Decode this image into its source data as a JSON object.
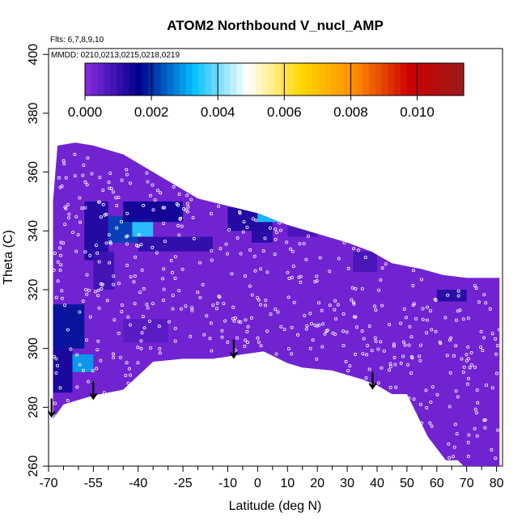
{
  "chart_data": {
    "type": "heatmap",
    "title": "ATOM2 Northbound V_nucl_AMP",
    "notes": [
      "Flts: 6,7,8,9,10",
      "MMDD: 0210,0213,0215,0218,0219"
    ],
    "xlabel": "Latitude (deg N)",
    "ylabel": "Theta (C)",
    "xlim": [
      -70,
      82
    ],
    "ylim": [
      260,
      402
    ],
    "x_ticks": [
      -70,
      -55,
      -40,
      -25,
      -10,
      0,
      10,
      20,
      30,
      40,
      50,
      60,
      70,
      80
    ],
    "x_tick_labels": [
      "-70",
      "-55",
      "-40",
      "-25",
      "-10",
      "0",
      "10",
      "20",
      "30",
      "40",
      "50",
      "60",
      "70",
      "80"
    ],
    "x_minor_ticks": [
      -65,
      -60,
      -50,
      -45,
      -35,
      -30,
      -20,
      -15,
      -5,
      5,
      15,
      25,
      35,
      45,
      55,
      65,
      75
    ],
    "y_ticks": [
      260,
      280,
      300,
      320,
      340,
      360,
      380,
      400
    ],
    "y_tick_labels": [
      "260",
      "280",
      "300",
      "320",
      "340",
      "360",
      "380",
      "400"
    ],
    "colorbar": {
      "min": 0.0,
      "max": 0.0114,
      "ticks": [
        0.0,
        0.002,
        0.004,
        0.006,
        0.008,
        0.01
      ],
      "tick_labels": [
        "0.000",
        "0.002",
        "0.004",
        "0.006",
        "0.008",
        "0.010"
      ],
      "colors": [
        "#8a2be2",
        "#00008b",
        "#00bfff",
        "#ffffff",
        "#ffd700",
        "#ff8c00",
        "#cc0000",
        "#9b1c1c"
      ]
    },
    "background_value": 0.0003,
    "field_boundary": [
      [
        -68.5,
        276
      ],
      [
        -65,
        281
      ],
      [
        -55,
        284
      ],
      [
        -45,
        286
      ],
      [
        -35,
        295.5
      ],
      [
        -25,
        296.5
      ],
      [
        -15,
        296.5
      ],
      [
        -5,
        298
      ],
      [
        2,
        299
      ],
      [
        10,
        295
      ],
      [
        15,
        293.5
      ],
      [
        25,
        292.5
      ],
      [
        35,
        289.5
      ],
      [
        40,
        287.5
      ],
      [
        45,
        284.5
      ],
      [
        50,
        284.5
      ],
      [
        57,
        270
      ],
      [
        63,
        262
      ],
      [
        67,
        262
      ],
      [
        69,
        260
      ],
      [
        81,
        260
      ],
      [
        81,
        324
      ],
      [
        70,
        324
      ],
      [
        62,
        325
      ],
      [
        55,
        327
      ],
      [
        45,
        329
      ],
      [
        38,
        333
      ],
      [
        30,
        336
      ],
      [
        20,
        339
      ],
      [
        10,
        342
      ],
      [
        0,
        346
      ],
      [
        -8,
        348
      ],
      [
        -20,
        351
      ],
      [
        -30,
        357
      ],
      [
        -45,
        366
      ],
      [
        -55,
        369
      ],
      [
        -61,
        370
      ],
      [
        -67,
        369
      ],
      [
        -68.5,
        350
      ]
    ],
    "enhanced_regions": [
      {
        "lat_range": [
          -68.5,
          -58
        ],
        "theta_range": [
          300,
          315
        ],
        "value": 0.0018
      },
      {
        "lat_range": [
          -68.5,
          -62
        ],
        "theta_range": [
          285,
          300
        ],
        "value": 0.0014
      },
      {
        "lat_range": [
          -62,
          -55
        ],
        "theta_range": [
          292,
          298
        ],
        "value": 0.003
      },
      {
        "lat_range": [
          -58,
          -50
        ],
        "theta_range": [
          330,
          350
        ],
        "value": 0.0013
      },
      {
        "lat_range": [
          -50,
          -40
        ],
        "theta_range": [
          336,
          345
        ],
        "value": 0.0022
      },
      {
        "lat_range": [
          -42,
          -35
        ],
        "theta_range": [
          338,
          344
        ],
        "value": 0.0035
      },
      {
        "lat_range": [
          -45,
          -25
        ],
        "theta_range": [
          343,
          350
        ],
        "value": 0.0015
      },
      {
        "lat_range": [
          -40,
          -15
        ],
        "theta_range": [
          333,
          338
        ],
        "value": 0.0011
      },
      {
        "lat_range": [
          -55,
          -48
        ],
        "theta_range": [
          320,
          333
        ],
        "value": 0.0009
      },
      {
        "lat_range": [
          -10,
          5
        ],
        "theta_range": [
          340,
          348
        ],
        "value": 0.0013
      },
      {
        "lat_range": [
          -2,
          5
        ],
        "theta_range": [
          336,
          342
        ],
        "value": 0.0012
      },
      {
        "lat_range": [
          0,
          10
        ],
        "theta_range": [
          343,
          346
        ],
        "value": 0.0034
      },
      {
        "lat_range": [
          -45,
          -30
        ],
        "theta_range": [
          302,
          310
        ],
        "value": 0.0006
      },
      {
        "lat_range": [
          10,
          20
        ],
        "theta_range": [
          338,
          342
        ],
        "value": 0.0008
      },
      {
        "lat_range": [
          32,
          40
        ],
        "theta_range": [
          326,
          333
        ],
        "value": 0.0008
      },
      {
        "lat_range": [
          60,
          70
        ],
        "theta_range": [
          316,
          320
        ],
        "value": 0.0012
      }
    ],
    "arrows": [
      {
        "lat": -69,
        "theta_from": 283,
        "theta_to": 277
      },
      {
        "lat": -55,
        "theta_from": 289,
        "theta_to": 283
      },
      {
        "lat": -8,
        "theta_from": 303,
        "theta_to": 297
      },
      {
        "lat": 38.5,
        "theta_from": 292,
        "theta_to": 286.5
      }
    ],
    "observations": {
      "symbol": "open-circle",
      "color": "#ffffff",
      "description_count": 520
    }
  }
}
